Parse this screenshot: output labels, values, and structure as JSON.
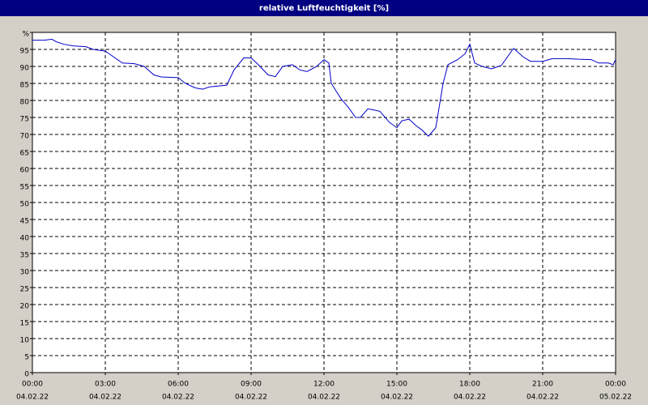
{
  "chart_data": {
    "type": "line",
    "title": "relative Luftfeuchtigkeit [%]",
    "x": [
      0,
      0.5,
      0.8,
      1.0,
      1.3,
      1.7,
      2.2,
      2.5,
      3.0,
      3.3,
      3.7,
      4.2,
      4.6,
      5.0,
      5.3,
      6.0,
      6.3,
      6.7,
      7.0,
      7.3,
      8.0,
      8.3,
      8.7,
      9.0,
      9.3,
      9.7,
      10.0,
      10.3,
      10.7,
      11.0,
      11.3,
      11.7,
      12.0,
      12.2,
      12.3,
      12.7,
      13.0,
      13.3,
      13.5,
      13.8,
      14.0,
      14.3,
      14.7,
      15.0,
      15.2,
      15.5,
      15.8,
      16.0,
      16.3,
      16.6,
      16.9,
      17.1,
      17.5,
      17.8,
      18.0,
      18.2,
      18.5,
      18.9,
      19.3,
      19.8,
      20.2,
      20.5,
      21.0,
      21.4,
      22.0,
      22.5,
      23.0,
      23.3,
      23.7,
      23.9,
      24.0
    ],
    "series": [
      {
        "color": "#0000c8",
        "values": [
          97.7,
          97.7,
          98,
          97.2,
          96.5,
          96,
          95.8,
          95,
          94.5,
          93,
          91,
          90.8,
          90,
          87.5,
          86.9,
          86.7,
          85,
          83.7,
          83.3,
          84,
          84.5,
          89,
          92.5,
          92.5,
          90.5,
          87.5,
          87,
          90,
          90.5,
          89,
          88.5,
          90,
          92,
          91,
          85,
          80.5,
          78,
          75,
          75,
          77.5,
          77.3,
          76.8,
          73.5,
          72,
          74,
          74.5,
          72.5,
          71.5,
          69.5,
          72,
          85,
          90.5,
          92,
          93.7,
          96.5,
          91,
          90,
          89.3,
          90.3,
          95.3,
          92.8,
          91.5,
          91.5,
          92.3,
          92.3,
          92.1,
          92,
          91,
          91,
          90.5,
          92
        ]
      }
    ],
    "xlim": [
      0,
      24
    ],
    "xticks": [
      {
        "value": 0,
        "label": "00:00"
      },
      {
        "value": 3,
        "label": "03:00"
      },
      {
        "value": 6,
        "label": "06:00"
      },
      {
        "value": 9,
        "label": "09:00"
      },
      {
        "value": 12,
        "label": "12:00"
      },
      {
        "value": 15,
        "label": "15:00"
      },
      {
        "value": 18,
        "label": "18:00"
      },
      {
        "value": 21,
        "label": "21:00"
      },
      {
        "value": 24,
        "label": "00:00"
      }
    ],
    "xtick_dates": [
      "04.02.22",
      "04.02.22",
      "04.02.22",
      "04.02.22",
      "04.02.22",
      "04.02.22",
      "04.02.22",
      "04.02.22",
      "05.02.22"
    ],
    "ylim": [
      0,
      100
    ],
    "yticks": [
      0,
      5,
      10,
      15,
      20,
      25,
      30,
      35,
      40,
      45,
      50,
      55,
      60,
      65,
      70,
      75,
      80,
      85,
      90,
      95,
      {
        "value": 100,
        "label": "%"
      }
    ],
    "grid": true
  }
}
